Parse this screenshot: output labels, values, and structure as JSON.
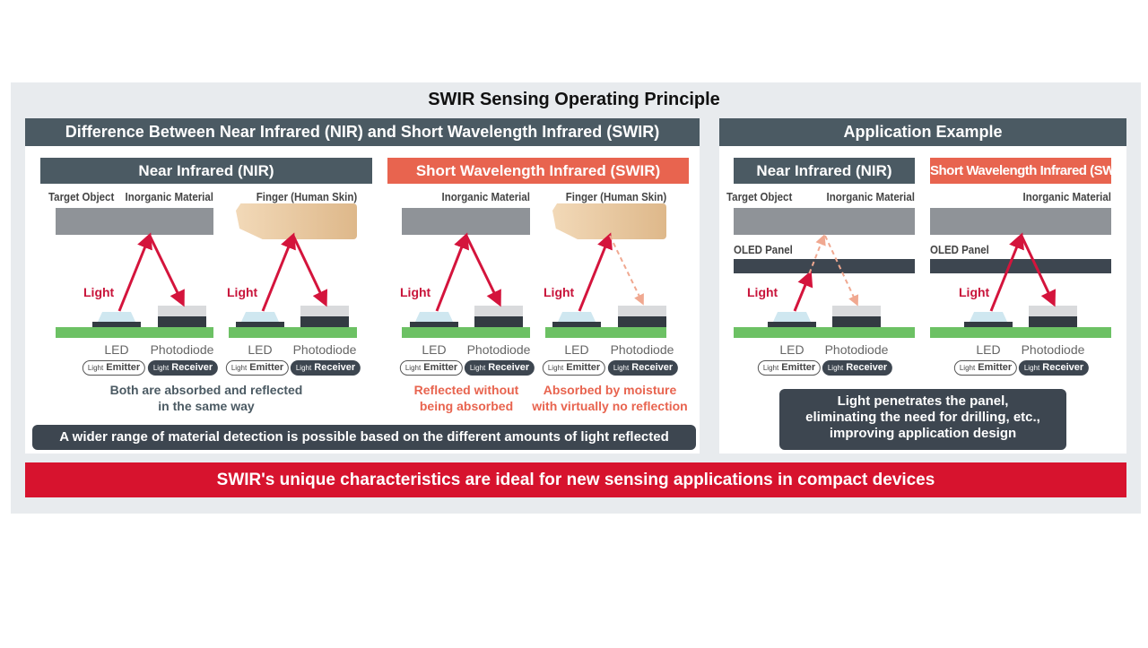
{
  "title": "SWIR Sensing Operating Principle",
  "left_header": "Difference Between Near Infrared (NIR) and Short Wavelength Infrared (SWIR)",
  "right_header": "Application Example",
  "sub_headers": {
    "nir": "Near Infrared (NIR)",
    "swir": "Short Wavelength Infrared (SWIR)",
    "app_nir": "Near Infrared (NIR)",
    "app_swir": "Short Wavelength Infrared (SWIR)"
  },
  "common": {
    "target_object": "Target Object",
    "inorganic": "Inorganic Material",
    "finger": "Finger (Human Skin)",
    "oled": "OLED Panel",
    "light": "Light",
    "led": "LED",
    "photodiode": "Photodiode",
    "pill_prefix": "Light",
    "emitter": "Emitter",
    "receiver": "Receiver"
  },
  "captions": {
    "nir": [
      "Both are absorbed and reflected",
      "in the same way"
    ],
    "swir_inorganic": [
      "Reflected without",
      "being absorbed"
    ],
    "swir_finger": [
      "Absorbed by moisture",
      "with virtually no reflection"
    ]
  },
  "left_note": "A wider range of material detection is possible based on the different amounts of light reflected",
  "right_note": [
    "Light penetrates the panel,",
    "eliminating the need for drilling, etc.,",
    "improving application design"
  ],
  "banner": "SWIR's unique characteristics are ideal for new sensing applications in compact devices",
  "colors": {
    "dark": "#4b5a63",
    "swir": "#e8644f",
    "banner": "#d7132e",
    "arrow": "#d4143c",
    "arrow_faded": "#f0a890",
    "board": "#6cc164"
  }
}
